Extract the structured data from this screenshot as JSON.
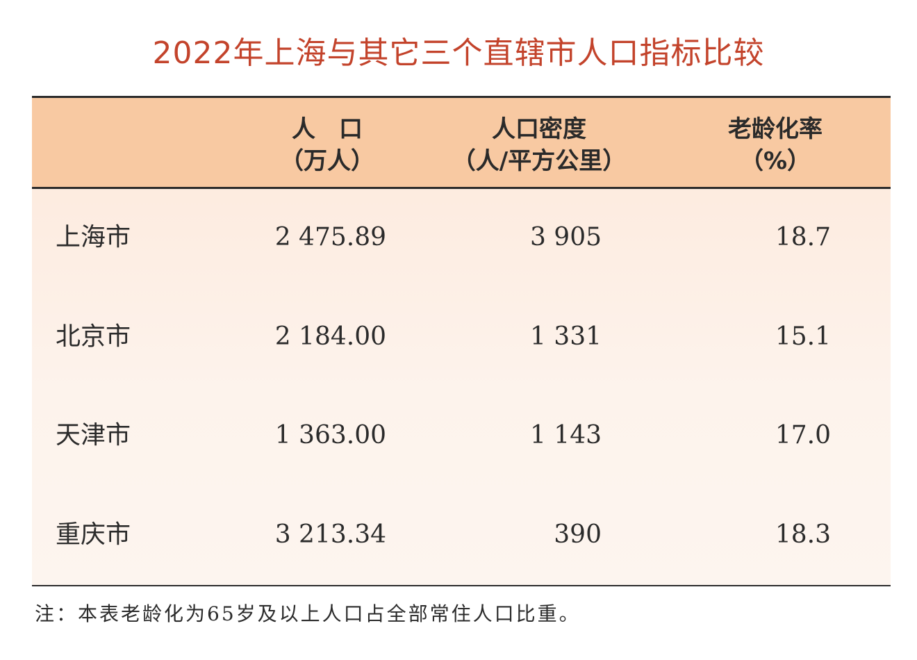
{
  "chart_data": {
    "type": "table",
    "title": "2022年上海与其它三个直辖市人口指标比较",
    "columns": [
      {
        "line1": "人　口",
        "line2": "（万人）"
      },
      {
        "line1": "人口密度",
        "line2": "（人/平方公里）"
      },
      {
        "line1": "老龄化率",
        "line2": "（%）"
      }
    ],
    "rows": [
      {
        "city": "上海市",
        "population": "2 475.89",
        "density": "3 905",
        "aging": "18.7"
      },
      {
        "city": "北京市",
        "population": "2 184.00",
        "density": "1 331",
        "aging": "15.1"
      },
      {
        "city": "天津市",
        "population": "1 363.00",
        "density": "1 143",
        "aging": "17.0"
      },
      {
        "city": "重庆市",
        "population": "3 213.34",
        "density": "390",
        "aging": "18.3"
      }
    ],
    "note": "注：本表老龄化为65岁及以上人口占全部常住人口比重。"
  },
  "colors": {
    "title": "#c3432b",
    "header_bg": "#f8c9a2",
    "body_bg": "#fdf1e8",
    "rule": "#2a2a2a"
  }
}
